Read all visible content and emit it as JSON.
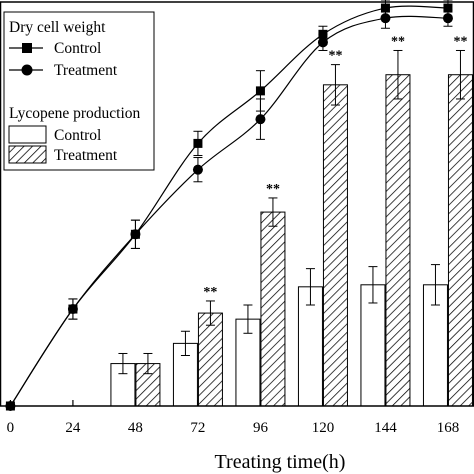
{
  "chart_data": {
    "type": "bar",
    "xlabel": "Treating time(h)",
    "x_ticks": [
      "0",
      "24",
      "48",
      "72",
      "96",
      "120",
      "144",
      "168"
    ],
    "x_values": [
      0,
      24,
      48,
      72,
      96,
      120,
      144,
      168
    ],
    "xlim": [
      -4,
      178
    ],
    "ylim": [
      0,
      100
    ],
    "bar_series": [
      {
        "name": "Control",
        "fill": "none",
        "x": [
          48,
          72,
          96,
          120,
          144,
          168
        ],
        "values": [
          10.5,
          15.5,
          21.5,
          29.5,
          30.0,
          30.0
        ],
        "errors": [
          2.5,
          3.0,
          3.5,
          4.5,
          4.5,
          5.0
        ]
      },
      {
        "name": "Treatment",
        "fill": "hatch",
        "x": [
          48,
          72,
          96,
          120,
          144,
          168
        ],
        "values": [
          10.5,
          23.0,
          48.0,
          79.5,
          82.0,
          82.0
        ],
        "errors": [
          2.5,
          3.0,
          3.5,
          5.0,
          6.0,
          6.0
        ],
        "significance": [
          "",
          "**",
          "**",
          "**",
          "**",
          "**"
        ]
      }
    ],
    "line_series": [
      {
        "name": "Control",
        "marker": "square",
        "x": [
          0,
          24,
          48,
          72,
          96,
          120,
          144,
          168
        ],
        "values": [
          0,
          24,
          42.5,
          65,
          78,
          92,
          98.5,
          98.5
        ],
        "errors": [
          0,
          2.5,
          3.5,
          3.0,
          5.0,
          2.0,
          2.0,
          2.0
        ]
      },
      {
        "name": "Treatment",
        "marker": "circle",
        "x": [
          0,
          24,
          48,
          72,
          96,
          120,
          144,
          168
        ],
        "values": [
          0,
          24,
          42.5,
          58.5,
          71,
          90,
          96,
          96
        ],
        "errors": [
          0,
          2.5,
          3.5,
          3.0,
          5.0,
          2.0,
          2.5,
          2.0
        ]
      }
    ],
    "legend": {
      "position": "top-left",
      "groups": [
        {
          "title": "Dry cell weight",
          "entries": [
            "Control",
            "Treatment"
          ]
        },
        {
          "title": "Lycopene production",
          "entries": [
            "Control",
            "Treatment"
          ]
        }
      ]
    },
    "grid": false
  }
}
